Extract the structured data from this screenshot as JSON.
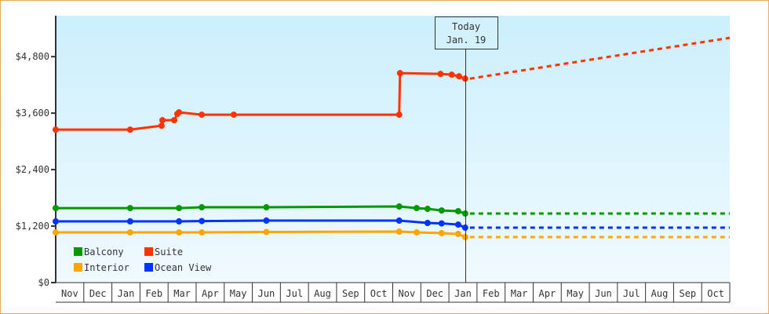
{
  "chart_data": {
    "type": "line",
    "title": "",
    "xlabel": "",
    "ylabel": "",
    "ylim": [
      0,
      5670
    ],
    "yticks": [
      {
        "v": 0,
        "label": "$0"
      },
      {
        "v": 1200,
        "label": "$1,200"
      },
      {
        "v": 2400,
        "label": "$2,400"
      },
      {
        "v": 3600,
        "label": "$3,600"
      },
      {
        "v": 4800,
        "label": "$4,800"
      }
    ],
    "months": [
      "Nov",
      "Dec",
      "Jan",
      "Feb",
      "Mar",
      "Apr",
      "May",
      "Jun",
      "Jul",
      "Aug",
      "Sep",
      "Oct",
      "Nov",
      "Dec",
      "Jan",
      "Feb",
      "Mar",
      "Apr",
      "May",
      "Jun",
      "Jul",
      "Aug",
      "Sep",
      "Oct"
    ],
    "x_unit": "months since start of first Nov",
    "today": {
      "x": 14.58,
      "line1": "Today",
      "line2": "Jan. 19"
    },
    "legend": {
      "placement": "bottom-left"
    },
    "series": [
      {
        "name": "Balcony",
        "color": "#009900",
        "points": [
          [
            0,
            1583
          ],
          [
            2.65,
            1583
          ],
          [
            4.39,
            1583
          ],
          [
            5.2,
            1600
          ],
          [
            7.5,
            1600
          ],
          [
            12.23,
            1617
          ],
          [
            12.85,
            1583
          ],
          [
            13.24,
            1567
          ],
          [
            13.74,
            1533
          ],
          [
            14.33,
            1517
          ],
          [
            14.58,
            1467
          ]
        ],
        "forecast": [
          [
            14.58,
            1467
          ],
          [
            24,
            1467
          ]
        ]
      },
      {
        "name": "Suite",
        "color": "#ff3300",
        "points": [
          [
            0,
            3250
          ],
          [
            2.65,
            3250
          ],
          [
            3.77,
            3333
          ],
          [
            3.8,
            3450
          ],
          [
            4.22,
            3450
          ],
          [
            4.33,
            3583
          ],
          [
            4.39,
            3617
          ],
          [
            5.2,
            3567
          ],
          [
            6.34,
            3567
          ],
          [
            12.23,
            3567
          ],
          [
            12.26,
            4450
          ],
          [
            13.7,
            4433
          ],
          [
            14.1,
            4417
          ],
          [
            14.36,
            4383
          ],
          [
            14.58,
            4333
          ]
        ],
        "forecast": [
          [
            14.58,
            4333
          ],
          [
            24,
            5200
          ]
        ]
      },
      {
        "name": "Interior",
        "color": "#ffa500",
        "points": [
          [
            0,
            1067
          ],
          [
            2.65,
            1067
          ],
          [
            4.39,
            1067
          ],
          [
            5.2,
            1067
          ],
          [
            7.5,
            1075
          ],
          [
            12.23,
            1083
          ],
          [
            12.85,
            1067
          ],
          [
            13.74,
            1050
          ],
          [
            14.33,
            1033
          ],
          [
            14.58,
            967
          ]
        ],
        "forecast": [
          [
            14.58,
            967
          ],
          [
            24,
            967
          ]
        ]
      },
      {
        "name": "Ocean View",
        "color": "#0033ff",
        "points": [
          [
            0,
            1300
          ],
          [
            2.65,
            1300
          ],
          [
            4.39,
            1300
          ],
          [
            5.2,
            1308
          ],
          [
            7.5,
            1317
          ],
          [
            12.23,
            1317
          ],
          [
            13.24,
            1267
          ],
          [
            13.74,
            1258
          ],
          [
            14.33,
            1233
          ],
          [
            14.58,
            1167
          ]
        ],
        "forecast": [
          [
            14.58,
            1167
          ],
          [
            24,
            1167
          ]
        ]
      }
    ]
  }
}
